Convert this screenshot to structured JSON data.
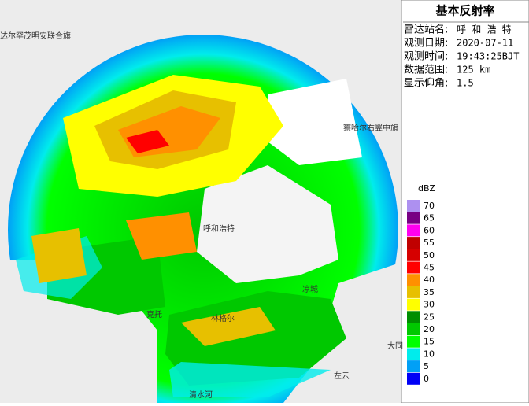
{
  "panel": {
    "title": "基本反射率",
    "rows": [
      {
        "label": "雷达站名:",
        "value": "呼 和 浩 特"
      },
      {
        "label": "观测日期:",
        "value": "2020-07-11"
      },
      {
        "label": "观测时间:",
        "value": "19:43:25BJT"
      },
      {
        "label": "数据范围:",
        "value": "125 km"
      },
      {
        "label": "显示仰角:",
        "value": "1.5"
      }
    ]
  },
  "legend": {
    "unit": "dBZ",
    "items": [
      {
        "value": 70,
        "color": "#ad90f0"
      },
      {
        "value": 65,
        "color": "#780084"
      },
      {
        "value": 60,
        "color": "#ff00f0"
      },
      {
        "value": 55,
        "color": "#c00000"
      },
      {
        "value": 50,
        "color": "#d60000"
      },
      {
        "value": 45,
        "color": "#ff0000"
      },
      {
        "value": 40,
        "color": "#ff9000"
      },
      {
        "value": 35,
        "color": "#e7c000"
      },
      {
        "value": 30,
        "color": "#ffff00"
      },
      {
        "value": 25,
        "color": "#008e00"
      },
      {
        "value": 20,
        "color": "#00c800"
      },
      {
        "value": 15,
        "color": "#00ff00"
      },
      {
        "value": 10,
        "color": "#00ecec"
      },
      {
        "value": 5,
        "color": "#01a0f6"
      },
      {
        "value": 0,
        "color": "#0000f6"
      }
    ]
  },
  "places": [
    "达尔罕茂明安联合旗",
    "察哈尔右翼中旗",
    "呼和浩特",
    "克托",
    "林格尔",
    "凉城",
    "大同",
    "左云",
    "清水河"
  ]
}
